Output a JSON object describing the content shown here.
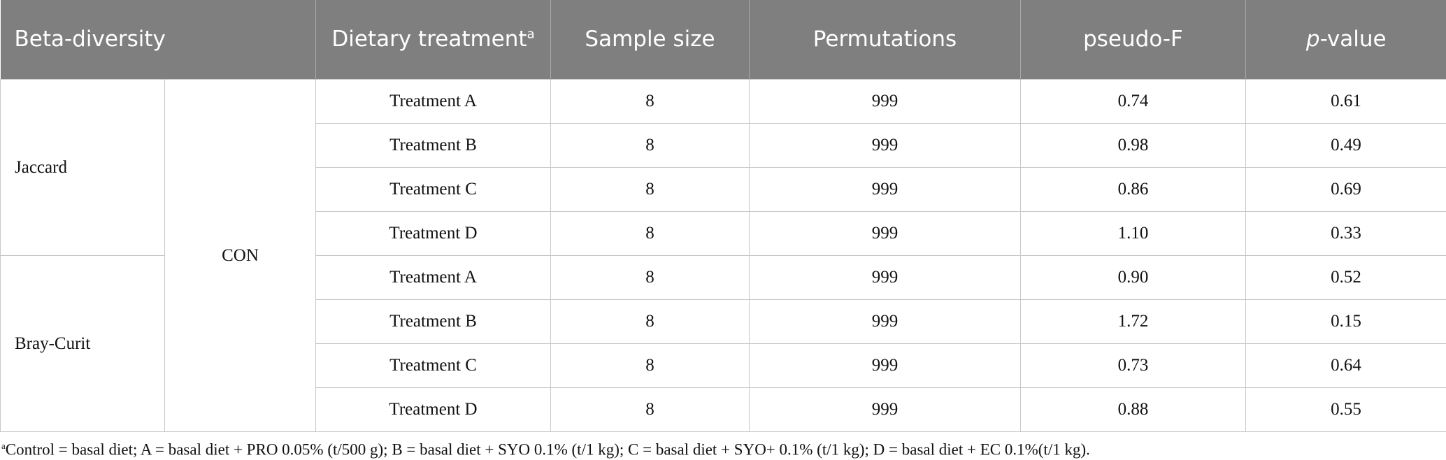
{
  "header": {
    "beta_diversity": "Beta-diversity",
    "dietary_treatment": "Dietary treatment",
    "dietary_treatment_note": "a",
    "sample_size": "Sample size",
    "permutations": "Permutations",
    "pseudo_f": "pseudo-F",
    "p_value_italic": "p",
    "p_value_rest": "-value"
  },
  "control": "CON",
  "groups": [
    {
      "metric": "Jaccard",
      "rows": [
        [
          "Treatment A",
          "8",
          "999",
          "0.74",
          "0.61"
        ],
        [
          "Treatment B",
          "8",
          "999",
          "0.98",
          "0.49"
        ],
        [
          "Treatment C",
          "8",
          "999",
          "0.86",
          "0.69"
        ],
        [
          "Treatment D",
          "8",
          "999",
          "1.10",
          "0.33"
        ]
      ]
    },
    {
      "metric": "Bray-Curit",
      "rows": [
        [
          "Treatment A",
          "8",
          "999",
          "0.90",
          "0.52"
        ],
        [
          "Treatment B",
          "8",
          "999",
          "1.72",
          "0.15"
        ],
        [
          "Treatment C",
          "8",
          "999",
          "0.73",
          "0.64"
        ],
        [
          "Treatment D",
          "8",
          "999",
          "0.88",
          "0.55"
        ]
      ]
    }
  ],
  "footnote": {
    "marker": "a",
    "text": "Control = basal diet; A = basal diet + PRO 0.05% (t/500 g); B = basal diet + SYO 0.1% (t/1 kg); C = basal diet + SYO+ 0.1% (t/1 kg); D = basal diet + EC 0.1%(t/1 kg)."
  }
}
